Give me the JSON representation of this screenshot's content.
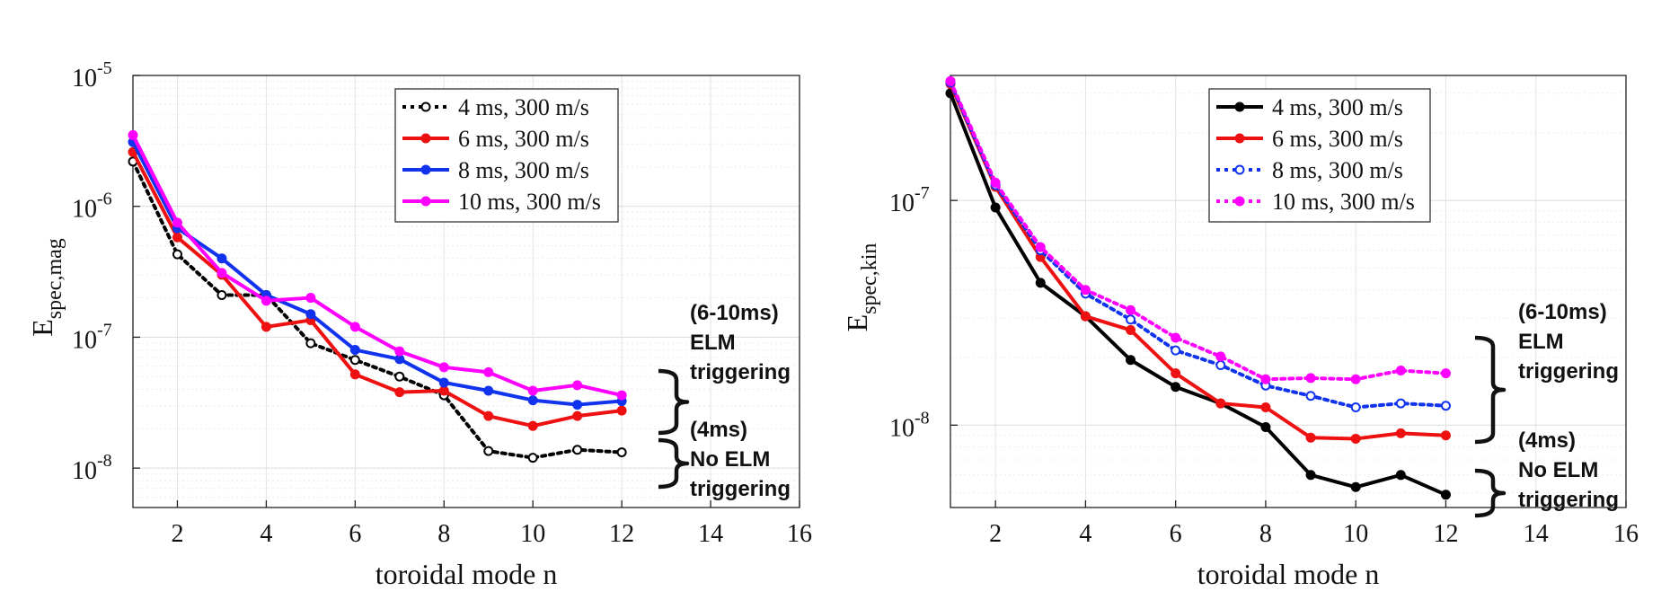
{
  "chart_data": [
    {
      "type": "line",
      "id": "mag",
      "ylabel": "E",
      "ylabel_sub": "spec,mag",
      "xlabel": "toroidal mode n",
      "yscale": "log",
      "xlim": [
        1,
        16
      ],
      "ylim": [
        5e-09,
        1e-05
      ],
      "x_ticks": [
        2,
        4,
        6,
        8,
        10,
        12,
        14,
        16
      ],
      "y_ticks": [
        {
          "value": 1e-08,
          "base": "10",
          "exp": "-8"
        },
        {
          "value": 1e-07,
          "base": "10",
          "exp": "-7"
        },
        {
          "value": 1e-06,
          "base": "10",
          "exp": "-6"
        },
        {
          "value": 1e-05,
          "base": "10",
          "exp": "-5"
        }
      ],
      "grid": true,
      "legend_position": "top-right",
      "x": [
        1,
        2,
        3,
        4,
        5,
        6,
        7,
        8,
        9,
        10,
        11,
        12
      ],
      "series": [
        {
          "name": "4 ms, 300 m/s",
          "color": "#000000",
          "style": "dotted",
          "marker": "open-circle",
          "values": [
            2.2e-06,
            4.3e-07,
            2.1e-07,
            2.1e-07,
            9e-08,
            6.7e-08,
            5e-08,
            3.6e-08,
            1.35e-08,
            1.2e-08,
            1.38e-08,
            1.32e-08
          ]
        },
        {
          "name": "6 ms, 300 m/s",
          "color": "#ee1111",
          "style": "solid",
          "marker": "filled-circle",
          "values": [
            2.6e-06,
            5.8e-07,
            3e-07,
            1.2e-07,
            1.35e-07,
            5.2e-08,
            3.8e-08,
            3.9e-08,
            2.5e-08,
            2.1e-08,
            2.5e-08,
            2.75e-08
          ]
        },
        {
          "name": "8 ms, 300 m/s",
          "color": "#1133ee",
          "style": "solid",
          "marker": "filled-circle",
          "values": [
            3.1e-06,
            6.8e-07,
            4e-07,
            2.1e-07,
            1.5e-07,
            8e-08,
            6.8e-08,
            4.5e-08,
            3.9e-08,
            3.3e-08,
            3.05e-08,
            3.25e-08
          ]
        },
        {
          "name": "10 ms, 300 m/s",
          "color": "#ff00ff",
          "style": "solid",
          "marker": "filled-circle",
          "values": [
            3.5e-06,
            7.5e-07,
            3.1e-07,
            1.9e-07,
            2e-07,
            1.2e-07,
            7.8e-08,
            5.9e-08,
            5.4e-08,
            3.9e-08,
            4.3e-08,
            3.6e-08
          ]
        }
      ],
      "annotations": [
        {
          "lines": [
            "(6-10ms)",
            "ELM",
            "triggering"
          ]
        },
        {
          "lines": [
            "(4ms)",
            "No ELM",
            "triggering"
          ]
        }
      ]
    },
    {
      "type": "line",
      "id": "kin",
      "ylabel": "E",
      "ylabel_sub": "spec,kin",
      "xlabel": "toroidal mode n",
      "yscale": "log",
      "xlim": [
        1,
        16
      ],
      "ylim": [
        4.3e-09,
        3.6e-07
      ],
      "x_ticks": [
        2,
        4,
        6,
        8,
        10,
        12,
        14,
        16
      ],
      "y_ticks": [
        {
          "value": 1e-08,
          "base": "10",
          "exp": "-8"
        },
        {
          "value": 1e-07,
          "base": "10",
          "exp": "-7"
        }
      ],
      "grid": true,
      "legend_position": "top-right",
      "x": [
        1,
        2,
        3,
        4,
        5,
        6,
        7,
        8,
        9,
        10,
        11,
        12
      ],
      "series": [
        {
          "name": "4 ms, 300 m/s",
          "color": "#000000",
          "style": "solid",
          "marker": "filled-circle",
          "values": [
            3e-07,
            9.3e-08,
            4.3e-08,
            3.05e-08,
            1.95e-08,
            1.48e-08,
            1.25e-08,
            9.8e-09,
            6e-09,
            5.3e-09,
            6e-09,
            4.9e-09
          ]
        },
        {
          "name": "6 ms, 300 m/s",
          "color": "#ee1111",
          "style": "solid",
          "marker": "filled-circle",
          "values": [
            3.3e-07,
            1.15e-07,
            5.6e-08,
            3.05e-08,
            2.65e-08,
            1.7e-08,
            1.25e-08,
            1.2e-08,
            8.8e-09,
            8.7e-09,
            9.2e-09,
            9e-09
          ]
        },
        {
          "name": "8 ms, 300 m/s",
          "color": "#1133ee",
          "style": "dotted",
          "marker": "open-circle",
          "values": [
            3.35e-07,
            1.17e-07,
            6e-08,
            3.85e-08,
            2.95e-08,
            2.15e-08,
            1.85e-08,
            1.5e-08,
            1.35e-08,
            1.2e-08,
            1.25e-08,
            1.22e-08
          ]
        },
        {
          "name": "10 ms, 300 m/s",
          "color": "#ff00ff",
          "style": "dotted",
          "marker": "filled-circle",
          "values": [
            3.4e-07,
            1.2e-07,
            6.2e-08,
            4e-08,
            3.25e-08,
            2.45e-08,
            2.02e-08,
            1.6e-08,
            1.62e-08,
            1.6e-08,
            1.75e-08,
            1.7e-08
          ]
        }
      ],
      "annotations": [
        {
          "lines": [
            "(6-10ms)",
            "ELM",
            "triggering"
          ]
        },
        {
          "lines": [
            "(4ms)",
            "No ELM",
            "triggering"
          ]
        }
      ]
    }
  ]
}
